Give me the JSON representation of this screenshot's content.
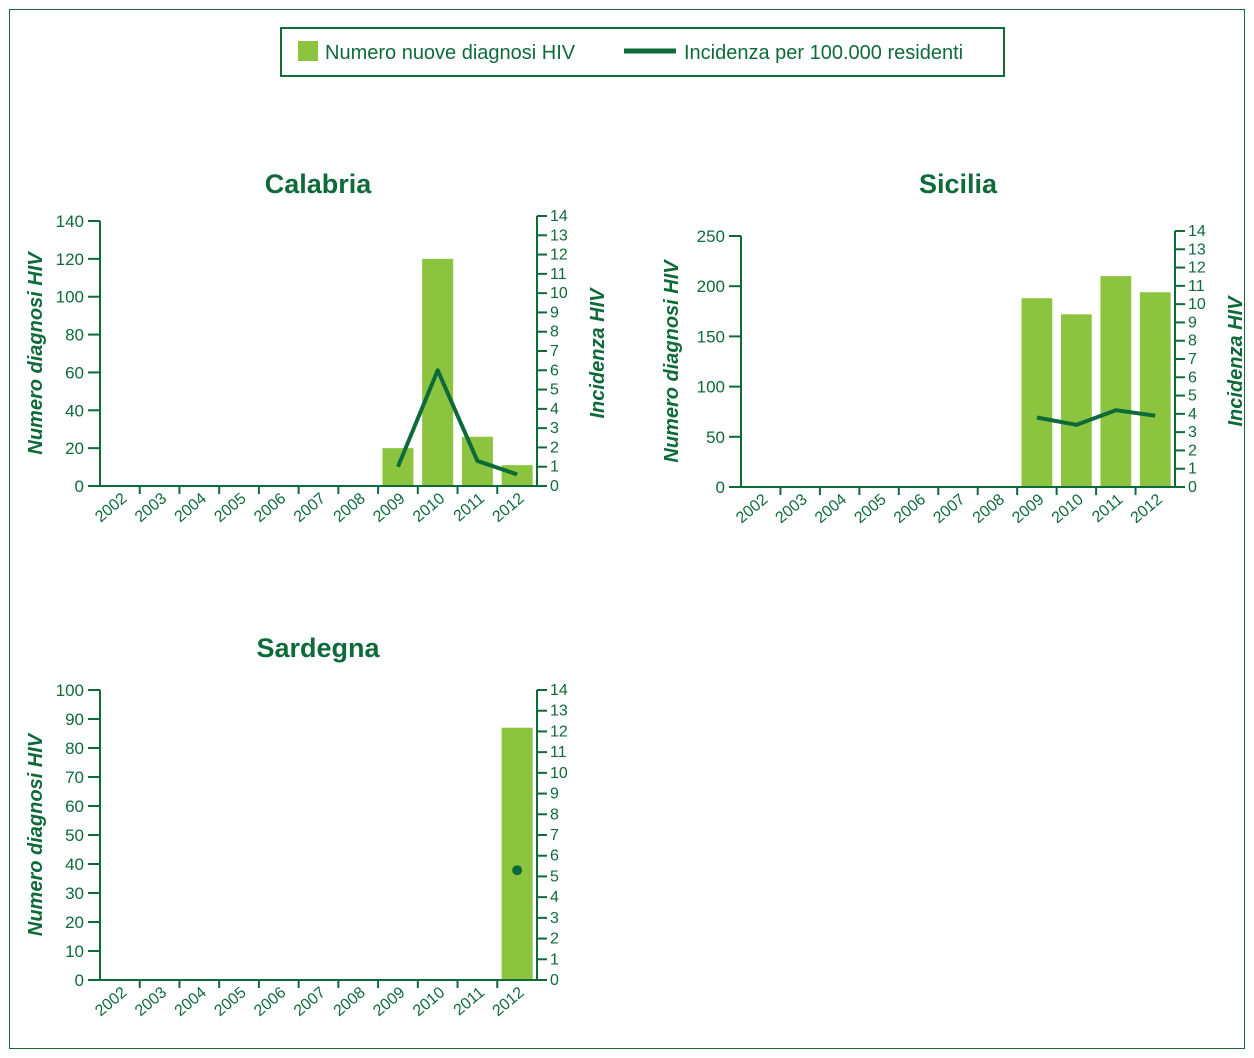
{
  "colors": {
    "bar": "#8cc43f",
    "line": "#0f6a3a",
    "text": "#0f6a3a",
    "frame": "#17693a"
  },
  "legend": {
    "bar_label": "Numero nuove diagnosi HIV",
    "line_label": "Incidenza per 100.000 residenti"
  },
  "chart_data": [
    {
      "type": "bar",
      "title": "Calabria",
      "ylabel": "Numero diagnosi HIV",
      "y2label": "Incidenza HIV",
      "categories": [
        "2002",
        "2003",
        "2004",
        "2005",
        "2006",
        "2007",
        "2008",
        "2009",
        "2010",
        "2011",
        "2012"
      ],
      "ylim": [
        0,
        140
      ],
      "yticks": [
        0,
        20,
        40,
        60,
        80,
        100,
        120,
        140
      ],
      "y2lim": [
        0,
        14
      ],
      "y2ticks": [
        0,
        1,
        2,
        3,
        4,
        5,
        6,
        7,
        8,
        9,
        10,
        11,
        12,
        13,
        14
      ],
      "series": [
        {
          "name": "Numero nuove diagnosi HIV",
          "type": "bar",
          "values": [
            null,
            null,
            null,
            null,
            null,
            null,
            null,
            20,
            120,
            26,
            11
          ]
        },
        {
          "name": "Incidenza per 100.000 residenti",
          "type": "line",
          "values": [
            null,
            null,
            null,
            null,
            null,
            null,
            null,
            1.0,
            6.0,
            1.3,
            0.6
          ]
        }
      ]
    },
    {
      "type": "bar",
      "title": "Sicilia",
      "ylabel": "Numero diagnosi HIV",
      "y2label": "Incidenza HIV",
      "categories": [
        "2002",
        "2003",
        "2004",
        "2005",
        "2006",
        "2007",
        "2008",
        "2009",
        "2010",
        "2011",
        "2012"
      ],
      "ylim": [
        0,
        250
      ],
      "yticks": [
        0,
        50,
        100,
        150,
        200,
        250
      ],
      "y2lim": [
        0,
        14
      ],
      "y2ticks": [
        0,
        1,
        2,
        3,
        4,
        5,
        6,
        7,
        8,
        9,
        10,
        11,
        12,
        13,
        14
      ],
      "series": [
        {
          "name": "Numero nuove diagnosi HIV",
          "type": "bar",
          "values": [
            null,
            null,
            null,
            null,
            null,
            null,
            null,
            188,
            172,
            210,
            194
          ]
        },
        {
          "name": "Incidenza per 100.000 residenti",
          "type": "line",
          "values": [
            null,
            null,
            null,
            null,
            null,
            null,
            null,
            3.8,
            3.4,
            4.2,
            3.9
          ]
        }
      ]
    },
    {
      "type": "bar",
      "title": "Sardegna",
      "ylabel": "Numero diagnosi HIV",
      "y2label": "",
      "categories": [
        "2002",
        "2003",
        "2004",
        "2005",
        "2006",
        "2007",
        "2008",
        "2009",
        "2010",
        "2011",
        "2012"
      ],
      "ylim": [
        0,
        100
      ],
      "yticks": [
        0,
        10,
        20,
        30,
        40,
        50,
        60,
        70,
        80,
        90,
        100
      ],
      "y2lim": [
        0,
        14
      ],
      "y2ticks": [
        0,
        1,
        2,
        3,
        4,
        5,
        6,
        7,
        8,
        9,
        10,
        11,
        12,
        13,
        14
      ],
      "series": [
        {
          "name": "Numero nuove diagnosi HIV",
          "type": "bar",
          "values": [
            null,
            null,
            null,
            null,
            null,
            null,
            null,
            null,
            null,
            null,
            87
          ]
        },
        {
          "name": "Incidenza per 100.000 residenti",
          "type": "line",
          "values": [
            null,
            null,
            null,
            null,
            null,
            null,
            null,
            null,
            null,
            null,
            5.3
          ]
        }
      ]
    }
  ]
}
